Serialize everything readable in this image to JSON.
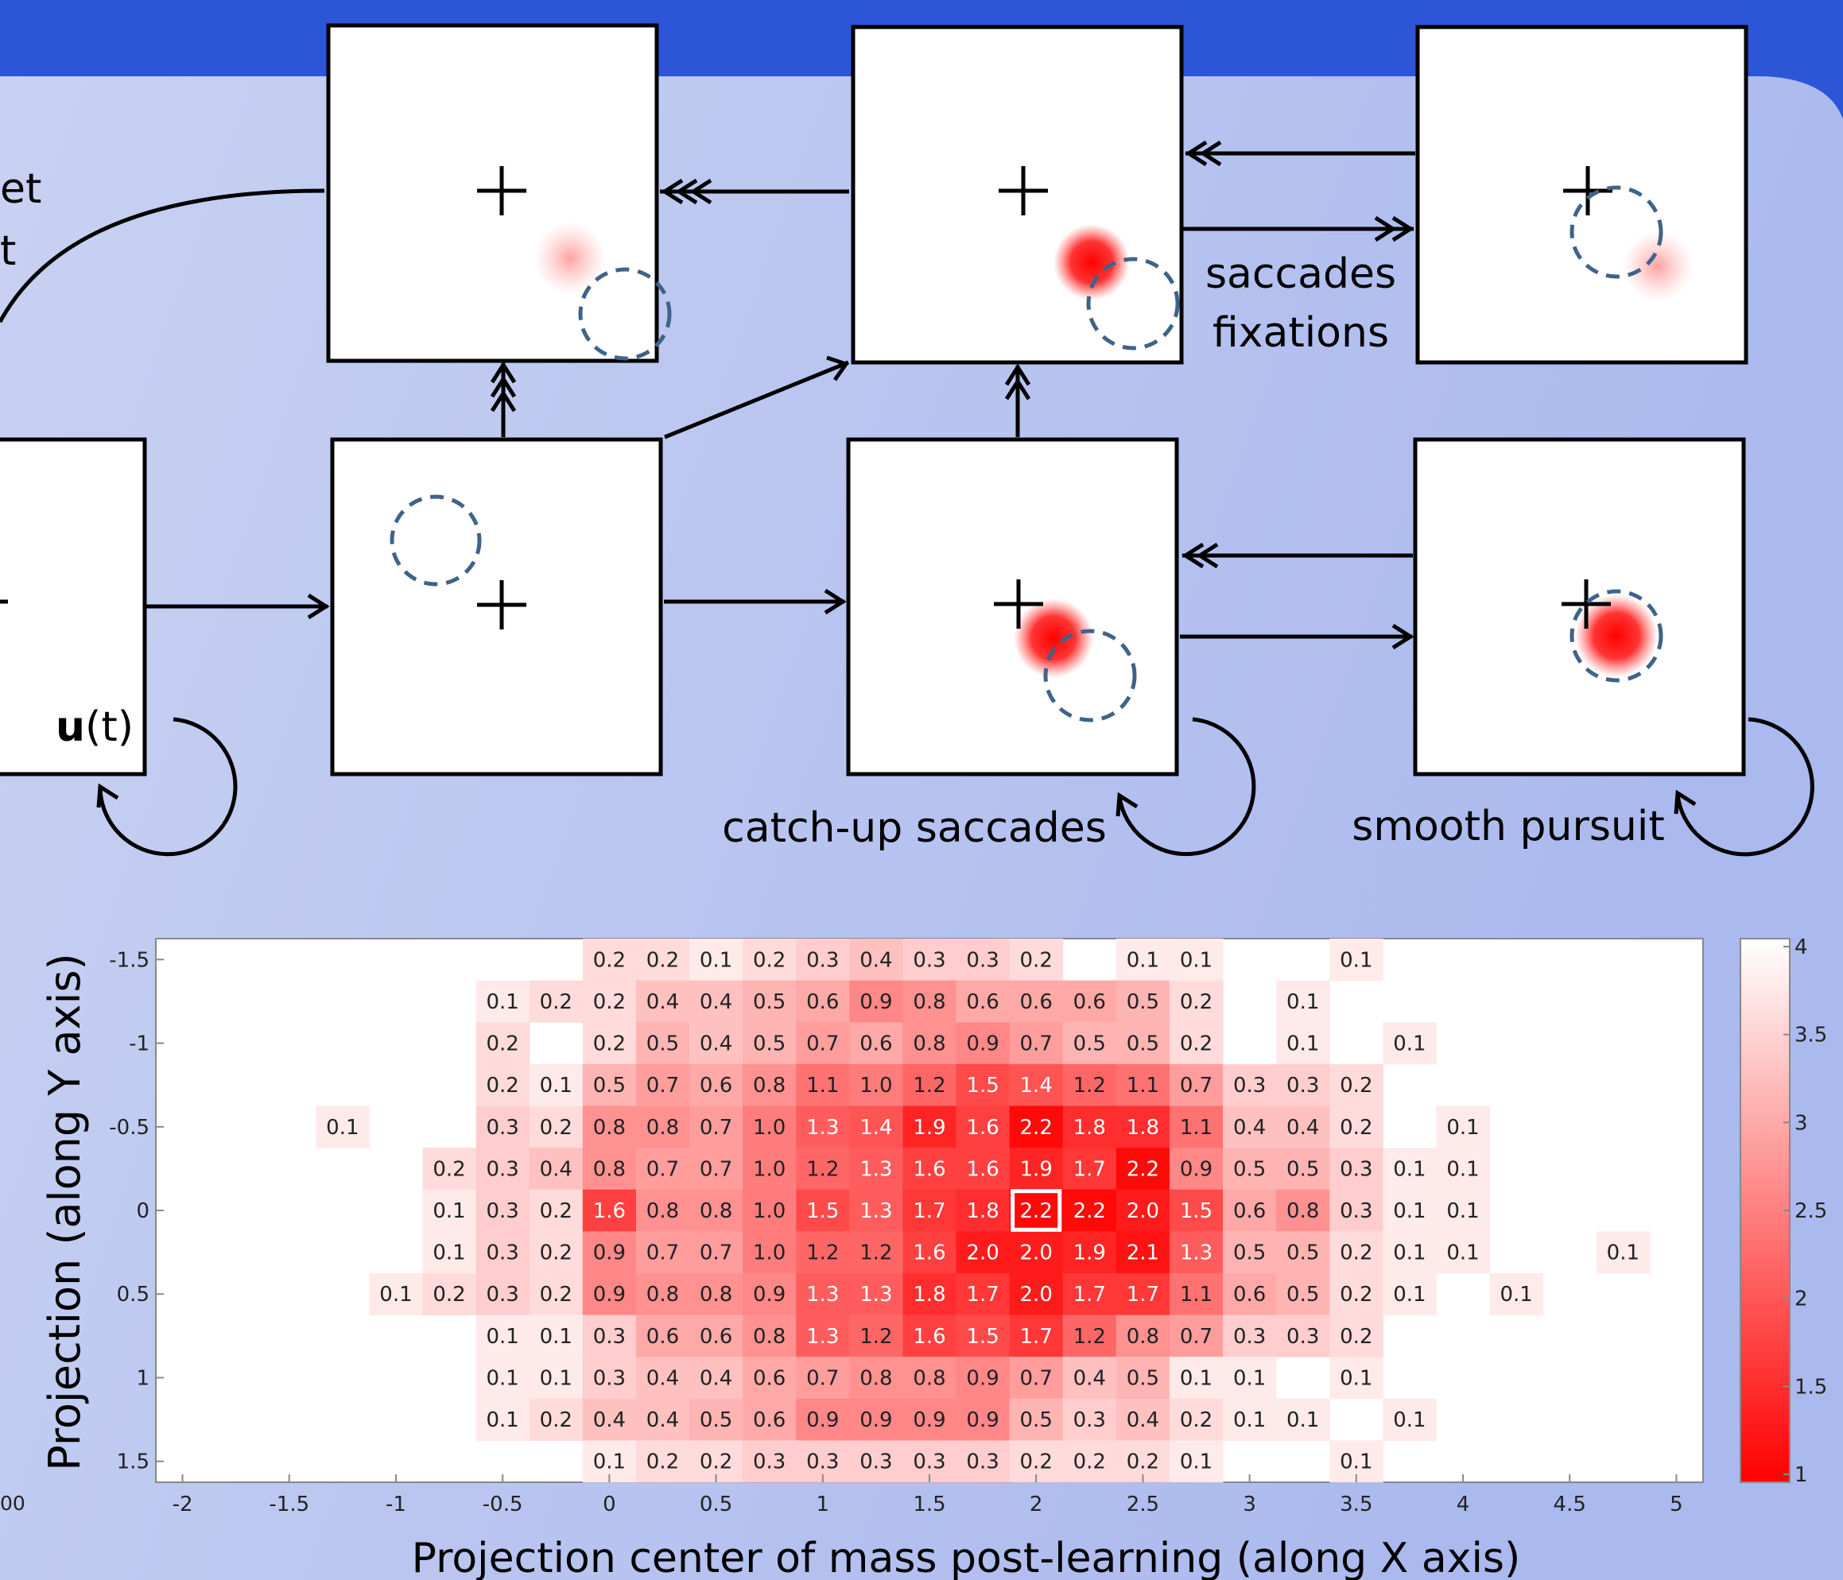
{
  "diagram": {
    "cut_left_label": [
      "et",
      "t"
    ],
    "u_label": {
      "bold": "u",
      "rest": "(t)"
    },
    "saccades_label": "saccades",
    "fixations_label": "fixations",
    "catchup_label": "catch-up saccades",
    "pursuit_label": "smooth pursuit"
  },
  "chart_data": {
    "type": "heatmap",
    "xlabel": "Projection center of mass post-learning (along X axis)",
    "ylabel": "Projection (along Y axis)",
    "left_cut_tick": "00",
    "xlim": [
      -2,
      5
    ],
    "ylim": [
      -1.5,
      1.5
    ],
    "x_ticks": [
      "-2",
      "-1.5",
      "-1",
      "-0.5",
      "0",
      "0.5",
      "1",
      "1.5",
      "2",
      "2.5",
      "3",
      "3.5",
      "4",
      "4.5",
      "5"
    ],
    "y_ticks": [
      "-1.5",
      "-1",
      "-0.5",
      "0",
      "0.5",
      "1",
      "1.5"
    ],
    "colorbar": {
      "min": 1,
      "max": 4,
      "ticks": [
        "4",
        "3.5",
        "3",
        "2.5",
        "2",
        "1.5",
        "1"
      ],
      "low_color": "#ff0000",
      "high_color": "#ffffff"
    },
    "highlight_cell": {
      "x": 2,
      "y": 0
    },
    "cells": [
      [
        "-1.50",
        [
          [
            0,
            "0.2"
          ],
          [
            0.25,
            "0.2"
          ],
          [
            0.5,
            "0.1"
          ],
          [
            0.75,
            "0.2"
          ],
          [
            1,
            "0.3"
          ],
          [
            1.25,
            "0.4"
          ],
          [
            1.5,
            "0.3"
          ],
          [
            1.75,
            "0.3"
          ],
          [
            2,
            "0.2"
          ],
          [
            2.5,
            "0.1"
          ],
          [
            2.75,
            "0.1"
          ],
          [
            3.5,
            "0.1"
          ]
        ]
      ],
      [
        "-1.25",
        [
          [
            -0.5,
            "0.1"
          ],
          [
            -0.25,
            "0.2"
          ],
          [
            0,
            "0.2"
          ],
          [
            0.25,
            "0.4"
          ],
          [
            0.5,
            "0.4"
          ],
          [
            0.75,
            "0.5"
          ],
          [
            1,
            "0.6"
          ],
          [
            1.25,
            "0.9"
          ],
          [
            1.5,
            "0.8"
          ],
          [
            1.75,
            "0.6"
          ],
          [
            2,
            "0.6"
          ],
          [
            2.25,
            "0.6"
          ],
          [
            2.5,
            "0.5"
          ],
          [
            2.75,
            "0.2"
          ],
          [
            3.25,
            "0.1"
          ]
        ]
      ],
      [
        "-1.00",
        [
          [
            -0.5,
            "0.2"
          ],
          [
            0,
            "0.2"
          ],
          [
            0.25,
            "0.5"
          ],
          [
            0.5,
            "0.4"
          ],
          [
            0.75,
            "0.5"
          ],
          [
            1,
            "0.7"
          ],
          [
            1.25,
            "0.6"
          ],
          [
            1.5,
            "0.8"
          ],
          [
            1.75,
            "0.9"
          ],
          [
            2,
            "0.7"
          ],
          [
            2.25,
            "0.5"
          ],
          [
            2.5,
            "0.5"
          ],
          [
            2.75,
            "0.2"
          ],
          [
            3.25,
            "0.1"
          ],
          [
            3.75,
            "0.1"
          ]
        ]
      ],
      [
        "-0.75",
        [
          [
            -0.5,
            "0.2"
          ],
          [
            -0.25,
            "0.1"
          ],
          [
            0,
            "0.5"
          ],
          [
            0.25,
            "0.7"
          ],
          [
            0.5,
            "0.6"
          ],
          [
            0.75,
            "0.8"
          ],
          [
            1,
            "1.1"
          ],
          [
            1.25,
            "1.0"
          ],
          [
            1.5,
            "1.2"
          ],
          [
            1.75,
            "1.5"
          ],
          [
            2,
            "1.4"
          ],
          [
            2.25,
            "1.2"
          ],
          [
            2.5,
            "1.1"
          ],
          [
            2.75,
            "0.7"
          ],
          [
            3,
            "0.3"
          ],
          [
            3.25,
            "0.3"
          ],
          [
            3.5,
            "0.2"
          ]
        ]
      ],
      [
        "-0.50",
        [
          [
            -1.25,
            "0.1"
          ],
          [
            -0.5,
            "0.3"
          ],
          [
            -0.25,
            "0.2"
          ],
          [
            0,
            "0.8"
          ],
          [
            0.25,
            "0.8"
          ],
          [
            0.5,
            "0.7"
          ],
          [
            0.75,
            "1.0"
          ],
          [
            1,
            "1.3"
          ],
          [
            1.25,
            "1.4"
          ],
          [
            1.5,
            "1.9"
          ],
          [
            1.75,
            "1.6"
          ],
          [
            2,
            "2.2"
          ],
          [
            2.25,
            "1.8"
          ],
          [
            2.5,
            "1.8"
          ],
          [
            2.75,
            "1.1"
          ],
          [
            3,
            "0.4"
          ],
          [
            3.25,
            "0.4"
          ],
          [
            3.5,
            "0.2"
          ],
          [
            4,
            "0.1"
          ]
        ]
      ],
      [
        "-0.25",
        [
          [
            -0.75,
            "0.2"
          ],
          [
            -0.5,
            "0.3"
          ],
          [
            -0.25,
            "0.4"
          ],
          [
            0,
            "0.8"
          ],
          [
            0.25,
            "0.7"
          ],
          [
            0.5,
            "0.7"
          ],
          [
            0.75,
            "1.0"
          ],
          [
            1,
            "1.2"
          ],
          [
            1.25,
            "1.3"
          ],
          [
            1.5,
            "1.6"
          ],
          [
            1.75,
            "1.6"
          ],
          [
            2,
            "1.9"
          ],
          [
            2.25,
            "1.7"
          ],
          [
            2.5,
            "2.2"
          ],
          [
            2.75,
            "0.9"
          ],
          [
            3,
            "0.5"
          ],
          [
            3.25,
            "0.5"
          ],
          [
            3.5,
            "0.3"
          ],
          [
            3.75,
            "0.1"
          ],
          [
            4,
            "0.1"
          ]
        ]
      ],
      [
        "0.00",
        [
          [
            -0.75,
            "0.1"
          ],
          [
            -0.5,
            "0.3"
          ],
          [
            -0.25,
            "0.2"
          ],
          [
            0,
            "1.6"
          ],
          [
            0.25,
            "0.8"
          ],
          [
            0.5,
            "0.8"
          ],
          [
            0.75,
            "1.0"
          ],
          [
            1,
            "1.5"
          ],
          [
            1.25,
            "1.3"
          ],
          [
            1.5,
            "1.7"
          ],
          [
            1.75,
            "1.8"
          ],
          [
            2,
            "2.2"
          ],
          [
            2.25,
            "2.2"
          ],
          [
            2.5,
            "2.0"
          ],
          [
            2.75,
            "1.5"
          ],
          [
            3,
            "0.6"
          ],
          [
            3.25,
            "0.8"
          ],
          [
            3.5,
            "0.3"
          ],
          [
            3.75,
            "0.1"
          ],
          [
            4,
            "0.1"
          ]
        ]
      ],
      [
        "0.25",
        [
          [
            -0.75,
            "0.1"
          ],
          [
            -0.5,
            "0.3"
          ],
          [
            -0.25,
            "0.2"
          ],
          [
            0,
            "0.9"
          ],
          [
            0.25,
            "0.7"
          ],
          [
            0.5,
            "0.7"
          ],
          [
            0.75,
            "1.0"
          ],
          [
            1,
            "1.2"
          ],
          [
            1.25,
            "1.2"
          ],
          [
            1.5,
            "1.6"
          ],
          [
            1.75,
            "2.0"
          ],
          [
            2,
            "2.0"
          ],
          [
            2.25,
            "1.9"
          ],
          [
            2.5,
            "2.1"
          ],
          [
            2.75,
            "1.3"
          ],
          [
            3,
            "0.5"
          ],
          [
            3.25,
            "0.5"
          ],
          [
            3.5,
            "0.2"
          ],
          [
            3.75,
            "0.1"
          ],
          [
            4,
            "0.1"
          ],
          [
            4.75,
            "0.1"
          ]
        ]
      ],
      [
        "0.50",
        [
          [
            -1,
            "0.1"
          ],
          [
            -0.75,
            "0.2"
          ],
          [
            -0.5,
            "0.3"
          ],
          [
            -0.25,
            "0.2"
          ],
          [
            0,
            "0.9"
          ],
          [
            0.25,
            "0.8"
          ],
          [
            0.5,
            "0.8"
          ],
          [
            0.75,
            "0.9"
          ],
          [
            1,
            "1.3"
          ],
          [
            1.25,
            "1.3"
          ],
          [
            1.5,
            "1.8"
          ],
          [
            1.75,
            "1.7"
          ],
          [
            2,
            "2.0"
          ],
          [
            2.25,
            "1.7"
          ],
          [
            2.5,
            "1.7"
          ],
          [
            2.75,
            "1.1"
          ],
          [
            3,
            "0.6"
          ],
          [
            3.25,
            "0.5"
          ],
          [
            3.5,
            "0.2"
          ],
          [
            3.75,
            "0.1"
          ],
          [
            4.25,
            "0.1"
          ]
        ]
      ],
      [
        "0.75",
        [
          [
            -0.5,
            "0.1"
          ],
          [
            -0.25,
            "0.1"
          ],
          [
            0,
            "0.3"
          ],
          [
            0.25,
            "0.6"
          ],
          [
            0.5,
            "0.6"
          ],
          [
            0.75,
            "0.8"
          ],
          [
            1,
            "1.3"
          ],
          [
            1.25,
            "1.2"
          ],
          [
            1.5,
            "1.6"
          ],
          [
            1.75,
            "1.5"
          ],
          [
            2,
            "1.7"
          ],
          [
            2.25,
            "1.2"
          ],
          [
            2.5,
            "0.8"
          ],
          [
            2.75,
            "0.7"
          ],
          [
            3,
            "0.3"
          ],
          [
            3.25,
            "0.3"
          ],
          [
            3.5,
            "0.2"
          ]
        ]
      ],
      [
        "1.00",
        [
          [
            -0.5,
            "0.1"
          ],
          [
            -0.25,
            "0.1"
          ],
          [
            0,
            "0.3"
          ],
          [
            0.25,
            "0.4"
          ],
          [
            0.5,
            "0.4"
          ],
          [
            0.75,
            "0.6"
          ],
          [
            1,
            "0.7"
          ],
          [
            1.25,
            "0.8"
          ],
          [
            1.5,
            "0.8"
          ],
          [
            1.75,
            "0.9"
          ],
          [
            2,
            "0.7"
          ],
          [
            2.25,
            "0.4"
          ],
          [
            2.5,
            "0.5"
          ],
          [
            2.75,
            "0.1"
          ],
          [
            3,
            "0.1"
          ],
          [
            3.5,
            "0.1"
          ]
        ]
      ],
      [
        "1.25",
        [
          [
            -0.5,
            "0.1"
          ],
          [
            -0.25,
            "0.2"
          ],
          [
            0,
            "0.4"
          ],
          [
            0.25,
            "0.4"
          ],
          [
            0.5,
            "0.5"
          ],
          [
            0.75,
            "0.6"
          ],
          [
            1,
            "0.9"
          ],
          [
            1.25,
            "0.9"
          ],
          [
            1.5,
            "0.9"
          ],
          [
            1.75,
            "0.9"
          ],
          [
            2,
            "0.5"
          ],
          [
            2.25,
            "0.3"
          ],
          [
            2.5,
            "0.4"
          ],
          [
            2.75,
            "0.2"
          ],
          [
            3,
            "0.1"
          ],
          [
            3.25,
            "0.1"
          ],
          [
            3.75,
            "0.1"
          ]
        ]
      ],
      [
        "1.50",
        [
          [
            0,
            "0.1"
          ],
          [
            0.25,
            "0.2"
          ],
          [
            0.5,
            "0.2"
          ],
          [
            0.75,
            "0.3"
          ],
          [
            1,
            "0.3"
          ],
          [
            1.25,
            "0.3"
          ],
          [
            1.5,
            "0.3"
          ],
          [
            1.75,
            "0.3"
          ],
          [
            2,
            "0.2"
          ],
          [
            2.25,
            "0.2"
          ],
          [
            2.5,
            "0.2"
          ],
          [
            2.75,
            "0.1"
          ],
          [
            3.5,
            "0.1"
          ]
        ]
      ]
    ]
  }
}
